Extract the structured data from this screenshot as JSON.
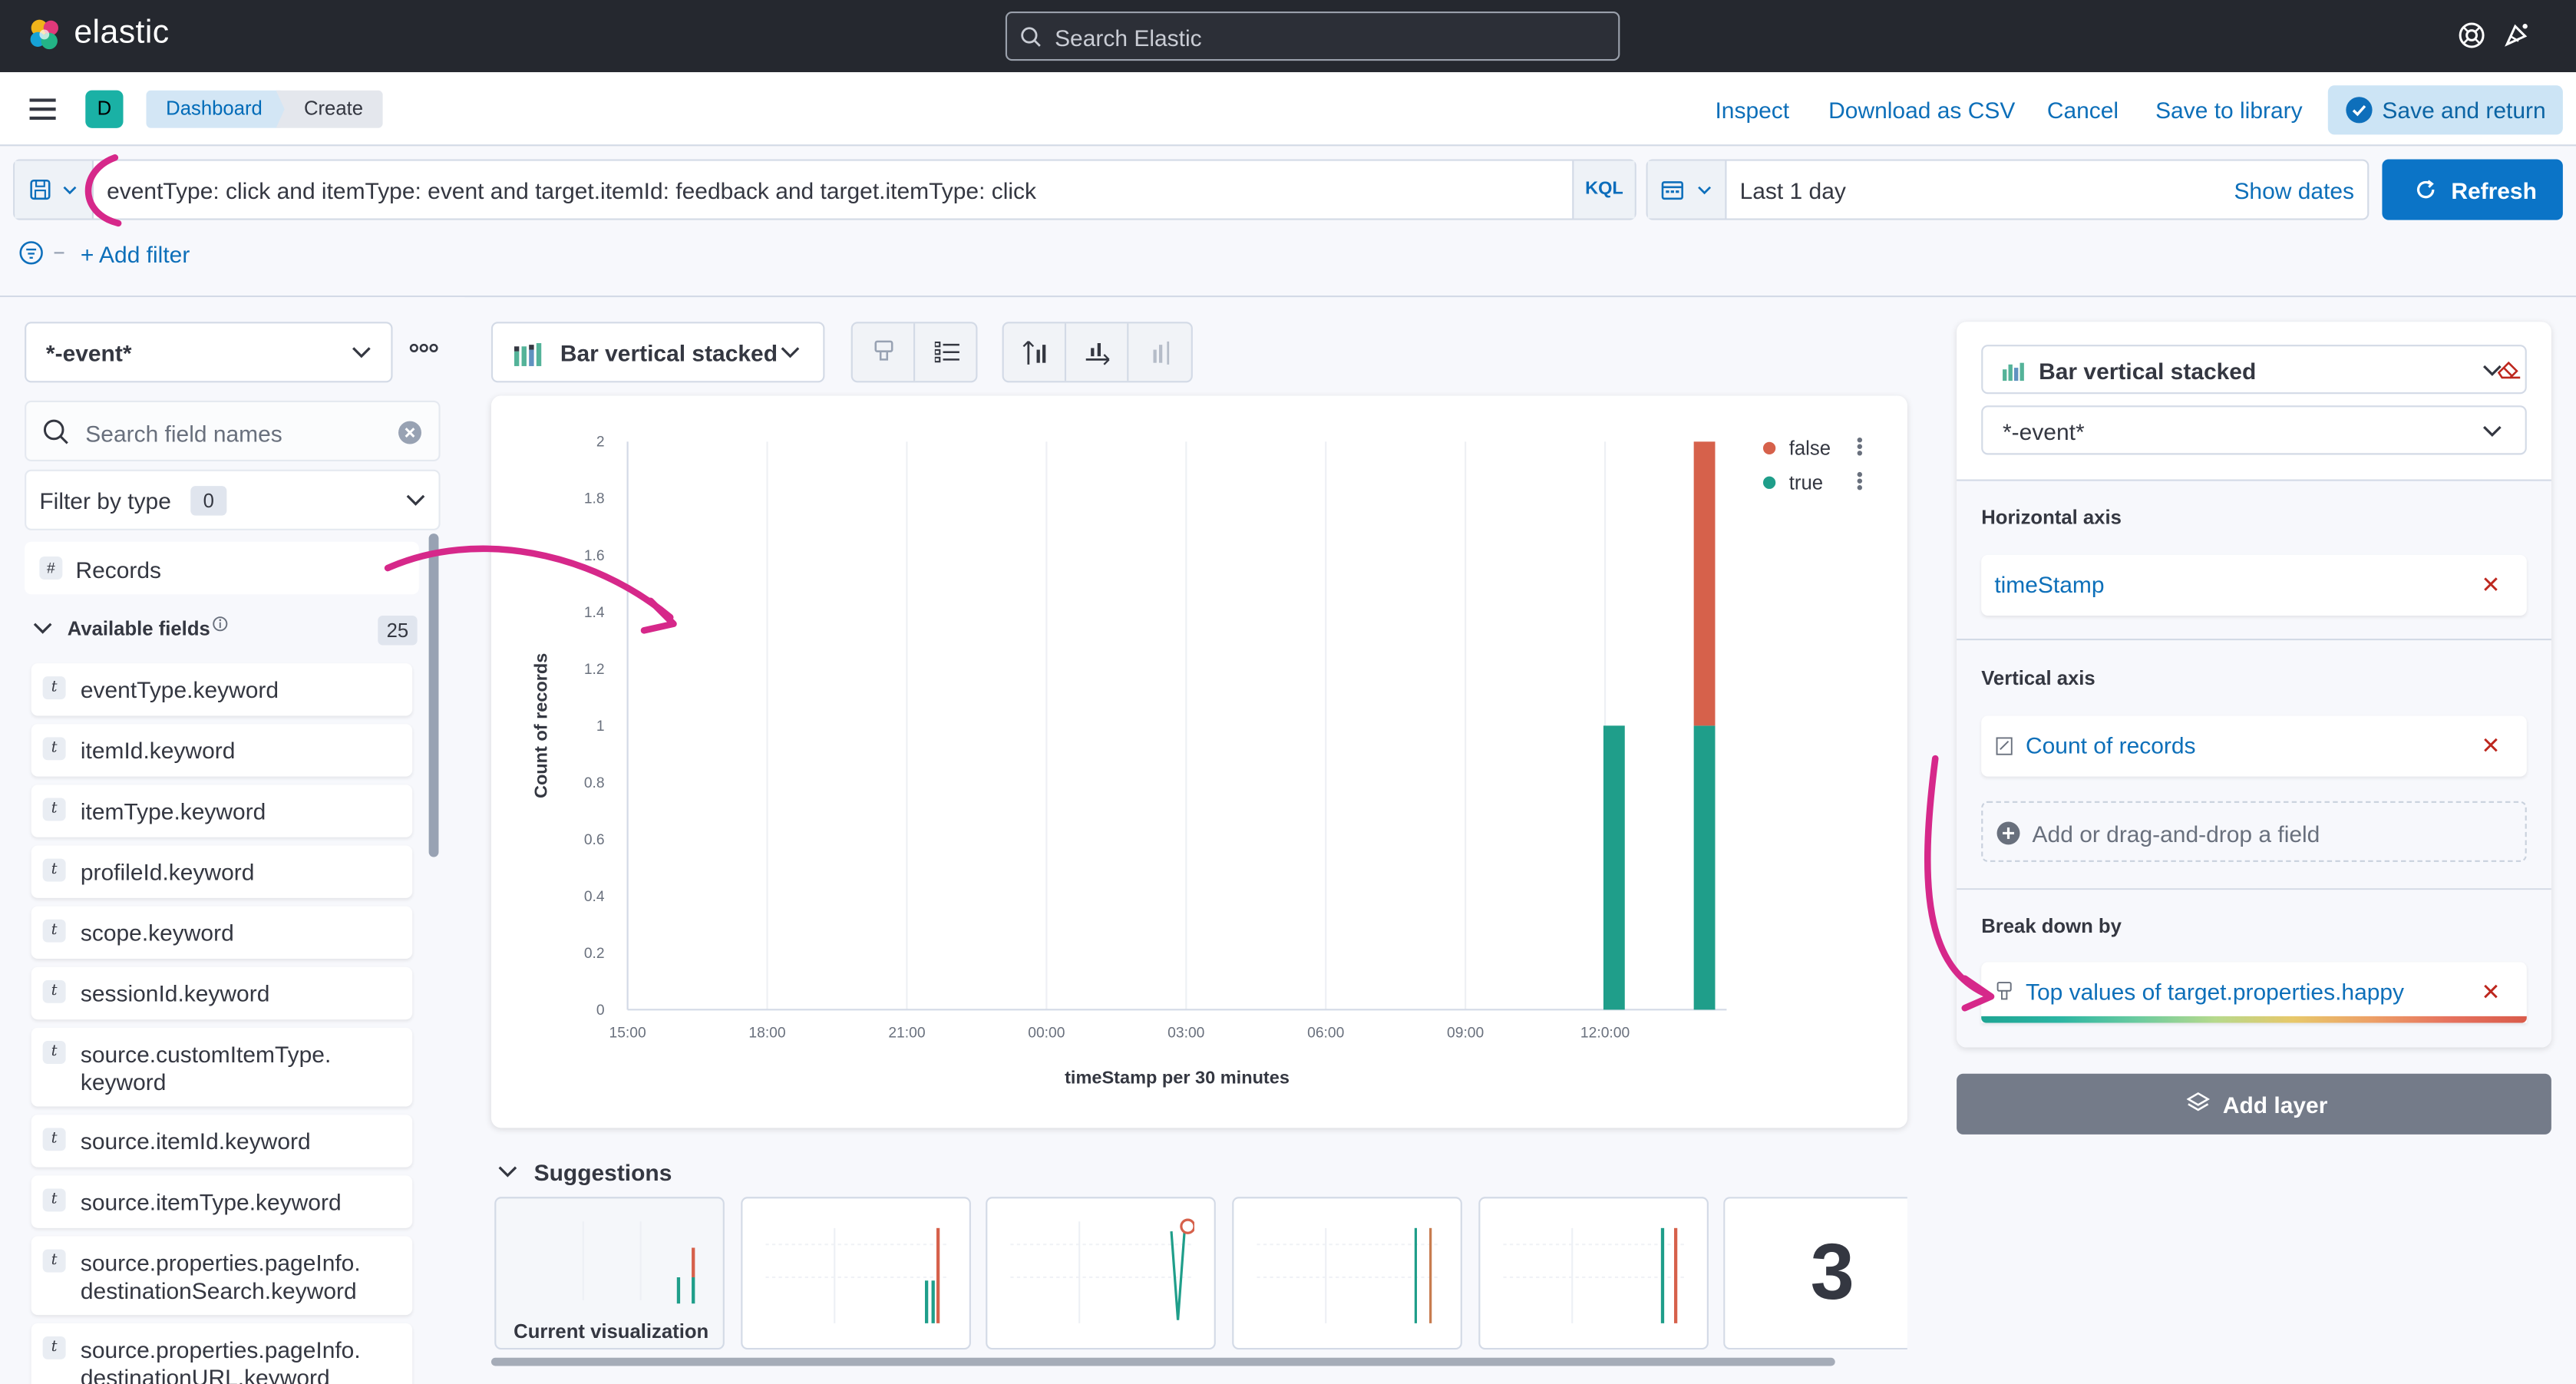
{
  "topbar": {
    "brand": "elastic",
    "search_placeholder": "Search Elastic"
  },
  "navbar": {
    "space_initial": "D",
    "breadcrumbs": [
      "Dashboard",
      "Create"
    ],
    "actions": [
      "Inspect",
      "Download as CSV",
      "Cancel",
      "Save to library"
    ],
    "save_return": "Save and return"
  },
  "querybar": {
    "query": "eventType: click and itemType: event and target.itemId: feedback and target.itemType: click",
    "language": "KQL",
    "time_range": "Last 1 day",
    "show_dates": "Show dates",
    "refresh": "Refresh",
    "add_filter": "+ Add filter"
  },
  "sidebar": {
    "index_pattern": "*-event*",
    "search_placeholder": "Search field names",
    "filter_by_type": "Filter by type",
    "filter_count": "0",
    "records": "Records",
    "available_label": "Available fields",
    "available_count": "25",
    "fields": [
      "eventType.keyword",
      "itemId.keyword",
      "itemType.keyword",
      "profileId.keyword",
      "scope.keyword",
      "sessionId.keyword",
      "source.customItemType.\nkeyword",
      "source.itemId.keyword",
      "source.itemType.keyword",
      "source.properties.pageInfo.\ndestinationSearch.keyword",
      "source.properties.pageInfo.\ndestinationURL.keyword"
    ]
  },
  "workspace": {
    "chart_type": "Bar vertical stacked",
    "suggestions_title": "Suggestions",
    "current_viz": "Current visualization",
    "metric_suggestion": "3"
  },
  "chart_data": {
    "type": "bar",
    "stacked": true,
    "xlabel": "timeStamp per 30 minutes",
    "ylabel": "Count of records",
    "ylim": [
      0,
      2
    ],
    "yticks": [
      "0",
      "0.2",
      "0.4",
      "0.6",
      "0.8",
      "1",
      "1.2",
      "1.4",
      "1.6",
      "1.8",
      "2"
    ],
    "xticks": [
      "15:00",
      "18:00",
      "21:00",
      "00:00",
      "03:00",
      "06:00",
      "09:00",
      "12:0:00"
    ],
    "legend_position": "top-right",
    "series": [
      {
        "name": "false",
        "color": "#d6614b"
      },
      {
        "name": "true",
        "color": "#1f9e8a"
      }
    ],
    "bars": [
      {
        "slot": 0,
        "true": 1,
        "false": 0
      },
      {
        "slot": 2,
        "true": 1,
        "false": 1
      }
    ]
  },
  "config": {
    "chart_type": "Bar vertical stacked",
    "index_pattern": "*-event*",
    "horizontal_axis_title": "Horizontal axis",
    "horizontal_field": "timeStamp",
    "vertical_axis_title": "Vertical axis",
    "vertical_field": "Count of records",
    "add_field": "Add or drag-and-drop a field",
    "breakdown_title": "Break down by",
    "breakdown_field": "Top values of target.properties.happy",
    "add_layer": "Add layer"
  },
  "colors": {
    "accent": "#0b74c7",
    "annotation": "#d6288a",
    "series_false": "#d6614b",
    "series_true": "#1f9e8a"
  }
}
